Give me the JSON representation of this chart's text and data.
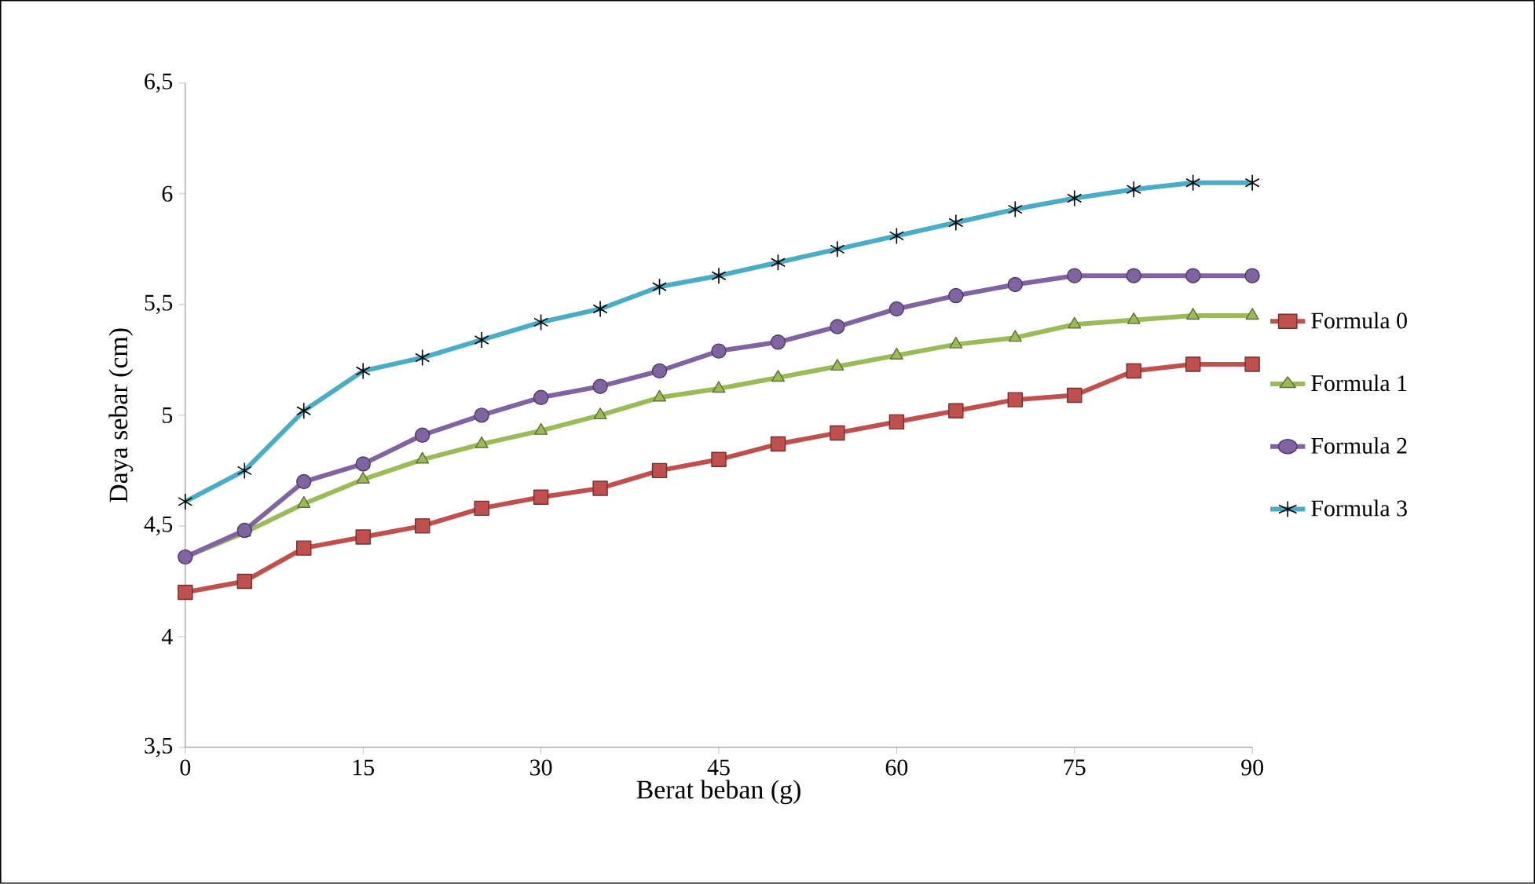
{
  "chart_data": {
    "type": "line",
    "xlabel": "Berat beban (g)",
    "ylabel": "Daya sebar (cm)",
    "x": [
      0,
      5,
      10,
      15,
      20,
      25,
      30,
      35,
      40,
      45,
      50,
      55,
      60,
      65,
      70,
      75,
      80,
      85,
      90
    ],
    "xlim": [
      0,
      90
    ],
    "xticks": [
      0,
      15,
      30,
      45,
      60,
      75,
      90
    ],
    "ylim": [
      3.5,
      6.5
    ],
    "yticks": [
      {
        "value": 3.5,
        "label": "3,5"
      },
      4,
      {
        "value": 4.5,
        "label": "4,5"
      },
      5,
      {
        "value": 5.5,
        "label": "5,5"
      },
      6,
      {
        "value": 6.5,
        "label": "6,5"
      }
    ],
    "grid": false,
    "legend": "right",
    "line_style": "solid",
    "series": [
      {
        "name": "Formula 0",
        "color": "#c0504d",
        "marker": "square",
        "values": [
          4.2,
          4.25,
          4.4,
          4.45,
          4.5,
          4.58,
          4.63,
          4.67,
          4.75,
          4.8,
          4.87,
          4.92,
          4.97,
          5.02,
          5.07,
          5.09,
          5.2,
          5.23,
          5.23
        ]
      },
      {
        "name": "Formula 1",
        "color": "#9bbb59",
        "marker": "triangle",
        "values": [
          4.36,
          4.47,
          4.6,
          4.71,
          4.8,
          4.87,
          4.93,
          5.0,
          5.08,
          5.12,
          5.17,
          5.22,
          5.27,
          5.32,
          5.35,
          5.41,
          5.43,
          5.45,
          5.45
        ]
      },
      {
        "name": "Formula 2",
        "color": "#8064a2",
        "marker": "circle",
        "values": [
          4.36,
          4.48,
          4.7,
          4.78,
          4.91,
          5.0,
          5.08,
          5.13,
          5.2,
          5.29,
          5.33,
          5.4,
          5.48,
          5.54,
          5.59,
          5.63,
          5.63,
          5.63,
          5.63
        ]
      },
      {
        "name": "Formula 3",
        "color": "#4bacc6",
        "marker": "cross",
        "values": [
          4.61,
          4.75,
          5.02,
          5.2,
          5.26,
          5.34,
          5.42,
          5.48,
          5.58,
          5.63,
          5.69,
          5.75,
          5.81,
          5.87,
          5.93,
          5.98,
          6.02,
          6.05,
          6.05
        ]
      }
    ]
  }
}
